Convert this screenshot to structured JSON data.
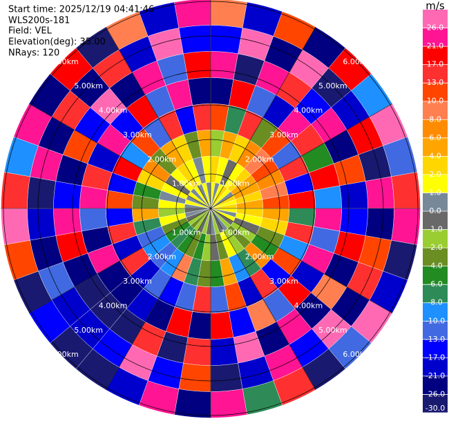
{
  "chart_data": {
    "type": "ppi",
    "start_time": "Start time: 2025/12/19 04:41:46",
    "instrument": "WLS200s-181",
    "field": "Field: VEL",
    "elevation": "Elevation(deg): 35.00",
    "nrays": "NRays: 120",
    "units": "m/s",
    "rlim": [
      0,
      6.07
    ],
    "range_rings": [
      {
        "value": 1,
        "label": "1.00km"
      },
      {
        "value": 2,
        "label": "2.00km"
      },
      {
        "value": 3,
        "label": "3.00km"
      },
      {
        "value": 4,
        "label": "4.00km"
      },
      {
        "value": 5,
        "label": "5.00km"
      },
      {
        "value": 6,
        "label": "6.00km"
      }
    ],
    "values": [
      [
        1.5,
        3,
        -1.5,
        12,
        -24,
        22,
        -15,
        8
      ],
      [
        0.5,
        1.5,
        5,
        -8,
        19,
        -28,
        27,
        -19
      ],
      [
        1.5,
        -0.5,
        3,
        15,
        -11,
        24,
        -22,
        11
      ],
      [
        3,
        1.5,
        7,
        -3,
        -18,
        14,
        28,
        -25
      ],
      [
        1.5,
        3,
        9,
        11,
        23,
        -14,
        -27,
        19
      ],
      [
        0.5,
        5,
        11,
        -12,
        15,
        25,
        -20,
        -9
      ],
      [
        3,
        5,
        7,
        14,
        -5,
        -23,
        18,
        27
      ],
      [
        1.5,
        3,
        9,
        -16,
        20,
        11,
        -28,
        -12
      ],
      [
        3,
        5,
        12,
        19,
        -9,
        -21,
        24,
        15
      ],
      [
        1.5,
        3,
        5,
        -7,
        25,
        -15,
        -25,
        22
      ],
      [
        0.5,
        1.5,
        3,
        15,
        -13,
        19,
        12,
        -27
      ],
      [
        1.5,
        -0.5,
        -3,
        -9,
        22,
        -26,
        15,
        -18
      ],
      [
        -0.5,
        -1.5,
        -5,
        11,
        -19,
        9,
        -23,
        28
      ],
      [
        -1.5,
        -3,
        7,
        -14,
        18,
        -22,
        26,
        -11
      ],
      [
        0.5,
        -1.5,
        -7,
        16,
        -12,
        21,
        -17,
        -29
      ],
      [
        -0.5,
        1.5,
        -9,
        -20,
        9,
        -25,
        23,
        14
      ],
      [
        -1.5,
        -3,
        5,
        12,
        -16,
        27,
        -21,
        -8
      ],
      [
        0.5,
        -0.5,
        -5,
        -12,
        20,
        -18,
        -27,
        25
      ],
      [
        -0.5,
        -1.5,
        -3,
        14,
        -22,
        16,
        11,
        -24
      ],
      [
        -1.5,
        -5,
        -7,
        -11,
        18,
        -28,
        -14,
        22
      ],
      [
        -0.5,
        -3,
        9,
        -17,
        -25,
        13,
        27,
        -19
      ],
      [
        -1.5,
        -5,
        -9,
        -12,
        -21,
        -27,
        -15,
        -28
      ],
      [
        -3,
        -7,
        -11,
        -19,
        -23,
        -28,
        -18,
        -27
      ],
      [
        -1.5,
        -5,
        -9,
        15,
        -24,
        -27,
        -20,
        -16
      ],
      [
        -0.5,
        -3,
        -12,
        -18,
        21,
        -26,
        -11,
        -28
      ],
      [
        0.5,
        1.5,
        -7,
        14,
        -22,
        19,
        -25,
        12
      ],
      [
        -0.5,
        -1.5,
        5,
        -16,
        -11,
        25,
        -19,
        27
      ],
      [
        0.5,
        1.5,
        -3,
        12,
        22,
        -17,
        -28,
        15
      ],
      [
        1.5,
        0.5,
        -5,
        -14,
        16,
        -24,
        21,
        -9
      ],
      [
        0.5,
        1.5,
        3,
        18,
        -20,
        11,
        -26,
        24
      ],
      [
        1.5,
        -0.5,
        7,
        -9,
        25,
        -15,
        13,
        -22
      ],
      [
        0.5,
        1.5,
        -3,
        11,
        -17,
        27,
        -24,
        18
      ],
      [
        1.5,
        3,
        5,
        -13,
        19,
        -25,
        15,
        -28
      ],
      [
        0.5,
        1.5,
        3,
        16,
        -11,
        22,
        -19,
        9
      ],
      [
        1.5,
        0.5,
        -3,
        -15,
        24,
        -12,
        27,
        -21
      ],
      [
        0.5,
        1.5,
        5,
        13,
        -22,
        18,
        -14,
        25
      ]
    ],
    "colorbar": {
      "clim": [
        -30,
        30
      ],
      "ticks": [
        {
          "value": -30,
          "label": "-30.0"
        },
        {
          "value": -26,
          "label": "-26.0"
        },
        {
          "value": -21,
          "label": "-21.0"
        },
        {
          "value": -17,
          "label": "-17.0"
        },
        {
          "value": -13,
          "label": "-13.0"
        },
        {
          "value": -10,
          "label": "-10.0"
        },
        {
          "value": -8,
          "label": "-8.0"
        },
        {
          "value": -6,
          "label": "-6.0"
        },
        {
          "value": -4,
          "label": "-4.0"
        },
        {
          "value": -2,
          "label": "-2.0"
        },
        {
          "value": -1,
          "label": "-1.0"
        },
        {
          "value": 0,
          "label": "0.0"
        },
        {
          "value": 1,
          "label": "1.0"
        },
        {
          "value": 2,
          "label": "2.0"
        },
        {
          "value": 4,
          "label": "4.0"
        },
        {
          "value": 6,
          "label": "6.0"
        },
        {
          "value": 8,
          "label": "8.0"
        },
        {
          "value": 10,
          "label": "10.0"
        },
        {
          "value": 13,
          "label": "13.0"
        },
        {
          "value": 17,
          "label": "17.0"
        },
        {
          "value": 21,
          "label": "21.0"
        },
        {
          "value": 26,
          "label": "26.0"
        }
      ],
      "colors": [
        "#191970",
        "#000080",
        "#0000cd",
        "#0000ff",
        "#4169e1",
        "#1e90ff",
        "#2e8b57",
        "#228b22",
        "#6b8e23",
        "#9acd32",
        "#696969",
        "#778899",
        "#ffff00",
        "#ffd700",
        "#ffa500",
        "#ff8c00",
        "#ff7f50",
        "#ff4500",
        "#ff3030",
        "#ff0000",
        "#ff1493",
        "#ff69b4"
      ]
    }
  }
}
